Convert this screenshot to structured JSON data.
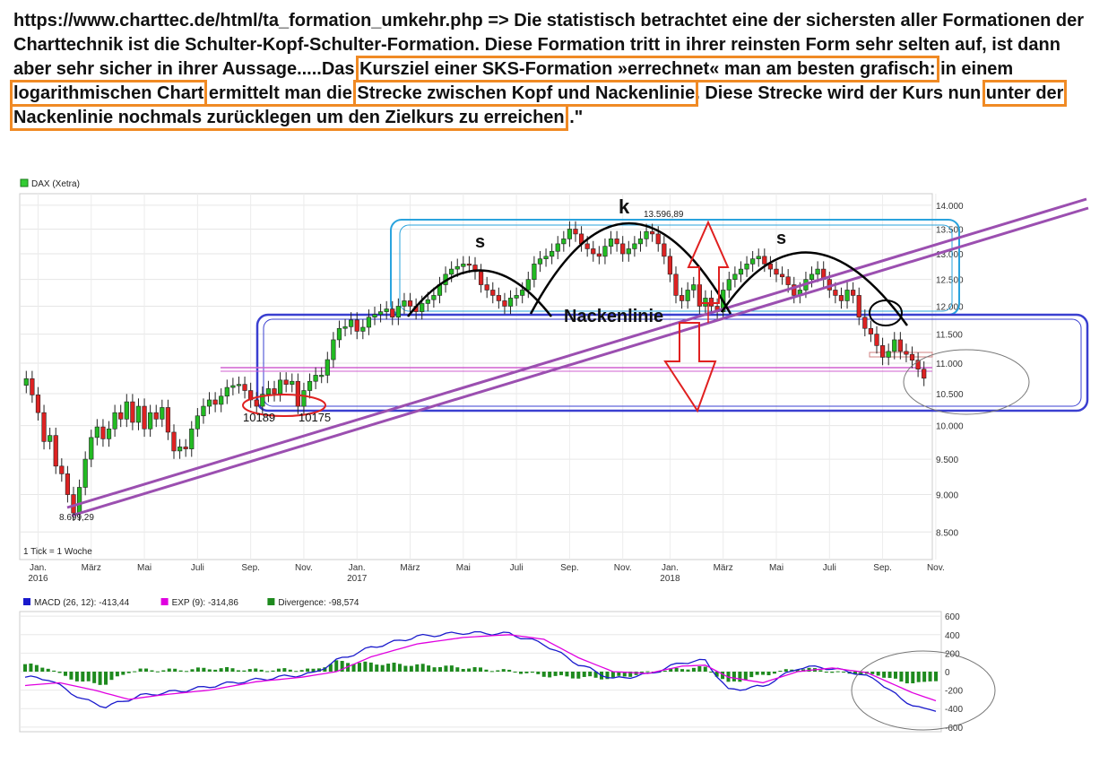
{
  "headline": {
    "parts": [
      {
        "text": "https://www.charttec.de/html/ta_formation_umkehr.php => Die  statistisch betrachtet eine der sichersten aller Formationen der Charttechnik ist die Schulter-Kopf-Schulter-Formation. Diese Formation tritt in ihrer reinsten Form sehr selten auf, ist dann aber sehr sicher in ihrer Aussage.....Das ",
        "hl": false
      },
      {
        "text": "Kursziel einer SKS-Formation »errechnet« man am besten grafisch:",
        "hl": true
      },
      {
        "text": " in einem ",
        "hl": false
      },
      {
        "text": "logarithmischen Chart",
        "hl": true
      },
      {
        "text": " ermittelt man die ",
        "hl": false
      },
      {
        "text": "Strecke zwischen Kopf und Nackenlinie",
        "hl": true
      },
      {
        "text": ". Diese Strecke wird der Kurs nun ",
        "hl": false
      },
      {
        "text": "unter der Nackenlinie nochmals zurücklegen um den Zielkurs zu erreichen",
        "hl": true
      },
      {
        "text": "..\"",
        "hl": false
      }
    ],
    "highlight_color": "#f08a24"
  },
  "chart_data": [
    {
      "type": "candlestick",
      "legend": "DAX (Xetra)",
      "tick_note": "1 Tick = 1 Woche",
      "y_scale": "log",
      "ylim": [
        8150,
        14250
      ],
      "y_ticks": [
        {
          "value": 8500,
          "label": "8.500"
        },
        {
          "value": 9000,
          "label": "9.000"
        },
        {
          "value": 9500,
          "label": "9.500"
        },
        {
          "value": 10000,
          "label": "10.000"
        },
        {
          "value": 10500,
          "label": "10.500"
        },
        {
          "value": 11000,
          "label": "11.000"
        },
        {
          "value": 11500,
          "label": "11.500"
        },
        {
          "value": 12000,
          "label": "12.000"
        },
        {
          "value": 12500,
          "label": "12.500"
        },
        {
          "value": 13000,
          "label": "13.000"
        },
        {
          "value": 13500,
          "label": "13.500"
        },
        {
          "value": 14000,
          "label": "14.000"
        }
      ],
      "x_ticks": [
        {
          "week": 2,
          "label": "Jan.",
          "year": "2016"
        },
        {
          "week": 11,
          "label": "März"
        },
        {
          "week": 20,
          "label": "Mai"
        },
        {
          "week": 29,
          "label": "Juli"
        },
        {
          "week": 38,
          "label": "Sep."
        },
        {
          "week": 47,
          "label": "Nov."
        },
        {
          "week": 56,
          "label": "Jan.",
          "year": "2017"
        },
        {
          "week": 65,
          "label": "März"
        },
        {
          "week": 74,
          "label": "Mai"
        },
        {
          "week": 83,
          "label": "Juli"
        },
        {
          "week": 92,
          "label": "Sep."
        },
        {
          "week": 101,
          "label": "Nov."
        },
        {
          "week": 109,
          "label": "Jan.",
          "year": "2018"
        },
        {
          "week": 118,
          "label": "März"
        },
        {
          "week": 127,
          "label": "Mai"
        },
        {
          "week": 136,
          "label": "Juli"
        },
        {
          "week": 145,
          "label": "Sep."
        },
        {
          "week": 154,
          "label": "Nov."
        }
      ],
      "weekly_close": [
        10743,
        10480,
        10200,
        9760,
        9850,
        9400,
        9290,
        9000,
        8750,
        9100,
        9500,
        9820,
        9980,
        9800,
        9950,
        10200,
        10100,
        10370,
        10050,
        10300,
        9950,
        10200,
        10100,
        10280,
        9900,
        9620,
        9680,
        9650,
        9950,
        10150,
        10300,
        10400,
        10330,
        10460,
        10600,
        10630,
        10650,
        10550,
        10400,
        10300,
        10490,
        10580,
        10500,
        10720,
        10650,
        10700,
        10300,
        10550,
        10700,
        10800,
        10800,
        11060,
        11400,
        11600,
        11630,
        11750,
        11550,
        11620,
        11800,
        11850,
        11900,
        11950,
        11800,
        12000,
        12100,
        12000,
        11900,
        12050,
        12120,
        12200,
        12400,
        12600,
        12700,
        12750,
        12800,
        12780,
        12650,
        12400,
        12300,
        12200,
        12100,
        12000,
        12150,
        12200,
        12300,
        12500,
        12800,
        12900,
        12950,
        13050,
        13200,
        13300,
        13500,
        13400,
        13200,
        13100,
        13000,
        12950,
        13150,
        13300,
        13200,
        13000,
        13100,
        13200,
        13300,
        13450,
        13400,
        13200,
        12950,
        12600,
        12200,
        12100,
        12300,
        12400,
        12000,
        12150,
        12000,
        11900,
        12300,
        12500,
        12600,
        12700,
        12800,
        12900,
        12950,
        12800,
        12700,
        12600,
        12550,
        12400,
        12200,
        12300,
        12500,
        12600,
        12700,
        12500,
        12300,
        12200,
        12100,
        12300,
        12200,
        11800,
        11600,
        11500,
        11300,
        11100,
        11200,
        11400,
        11200,
        11150,
        11050,
        10900,
        10750
      ],
      "annotations": {
        "head_value": "13.596,89",
        "low_value": "8.699,29",
        "low_marks": [
          "10189",
          "10175"
        ],
        "left_shoulder": "s",
        "head": "k",
        "right_shoulder": "s",
        "neckline": "Nackenlinie"
      }
    },
    {
      "type": "line+bar",
      "legend": [
        {
          "name": "MACD (26, 12): -413,44",
          "color": "#1a1acc"
        },
        {
          "name": "EXP (9): -314,86",
          "color": "#e000e0"
        },
        {
          "name": "Divergence: -98,574",
          "color": "#1e8a1e"
        }
      ],
      "ylim": [
        -650,
        650
      ],
      "y_ticks": [
        {
          "value": 600,
          "label": "600"
        },
        {
          "value": 400,
          "label": "400"
        },
        {
          "value": 200,
          "label": "200"
        },
        {
          "value": 0,
          "label": "0"
        },
        {
          "value": -200,
          "label": "-200"
        },
        {
          "value": -400,
          "label": "-400"
        },
        {
          "value": -600,
          "label": "-600"
        }
      ],
      "macd_keypoints": [
        [
          0,
          -60
        ],
        [
          4,
          -80
        ],
        [
          10,
          -300
        ],
        [
          14,
          -380
        ],
        [
          20,
          -260
        ],
        [
          28,
          -200
        ],
        [
          36,
          -120
        ],
        [
          44,
          -60
        ],
        [
          50,
          -20
        ],
        [
          54,
          120
        ],
        [
          60,
          260
        ],
        [
          68,
          380
        ],
        [
          76,
          420
        ],
        [
          84,
          410
        ],
        [
          90,
          300
        ],
        [
          96,
          80
        ],
        [
          102,
          -80
        ],
        [
          108,
          -30
        ],
        [
          114,
          100
        ],
        [
          118,
          120
        ],
        [
          122,
          -200
        ],
        [
          128,
          -160
        ],
        [
          134,
          40
        ],
        [
          138,
          50
        ],
        [
          144,
          -10
        ],
        [
          148,
          -100
        ],
        [
          152,
          -300
        ],
        [
          156,
          -413
        ]
      ],
      "exp_keypoints": [
        [
          0,
          -150
        ],
        [
          6,
          -120
        ],
        [
          12,
          -200
        ],
        [
          18,
          -300
        ],
        [
          24,
          -250
        ],
        [
          32,
          -200
        ],
        [
          40,
          -110
        ],
        [
          48,
          -60
        ],
        [
          54,
          0
        ],
        [
          60,
          160
        ],
        [
          68,
          300
        ],
        [
          76,
          370
        ],
        [
          84,
          400
        ],
        [
          90,
          350
        ],
        [
          96,
          150
        ],
        [
          102,
          0
        ],
        [
          108,
          -20
        ],
        [
          114,
          60
        ],
        [
          118,
          70
        ],
        [
          122,
          -60
        ],
        [
          128,
          -120
        ],
        [
          134,
          0
        ],
        [
          140,
          40
        ],
        [
          146,
          -10
        ],
        [
          150,
          -120
        ],
        [
          154,
          -230
        ],
        [
          158,
          -315
        ]
      ]
    }
  ],
  "colors": {
    "up_candle": "#22bb22",
    "down_candle": "#dd2222",
    "trendline": "#9b4fb0",
    "box_blue": "#3a3fd0",
    "box_cyan": "#2aa3dd",
    "arrow_red": "#e02020",
    "low_ellipse": "#e02020",
    "support_line": "#d060d0"
  }
}
